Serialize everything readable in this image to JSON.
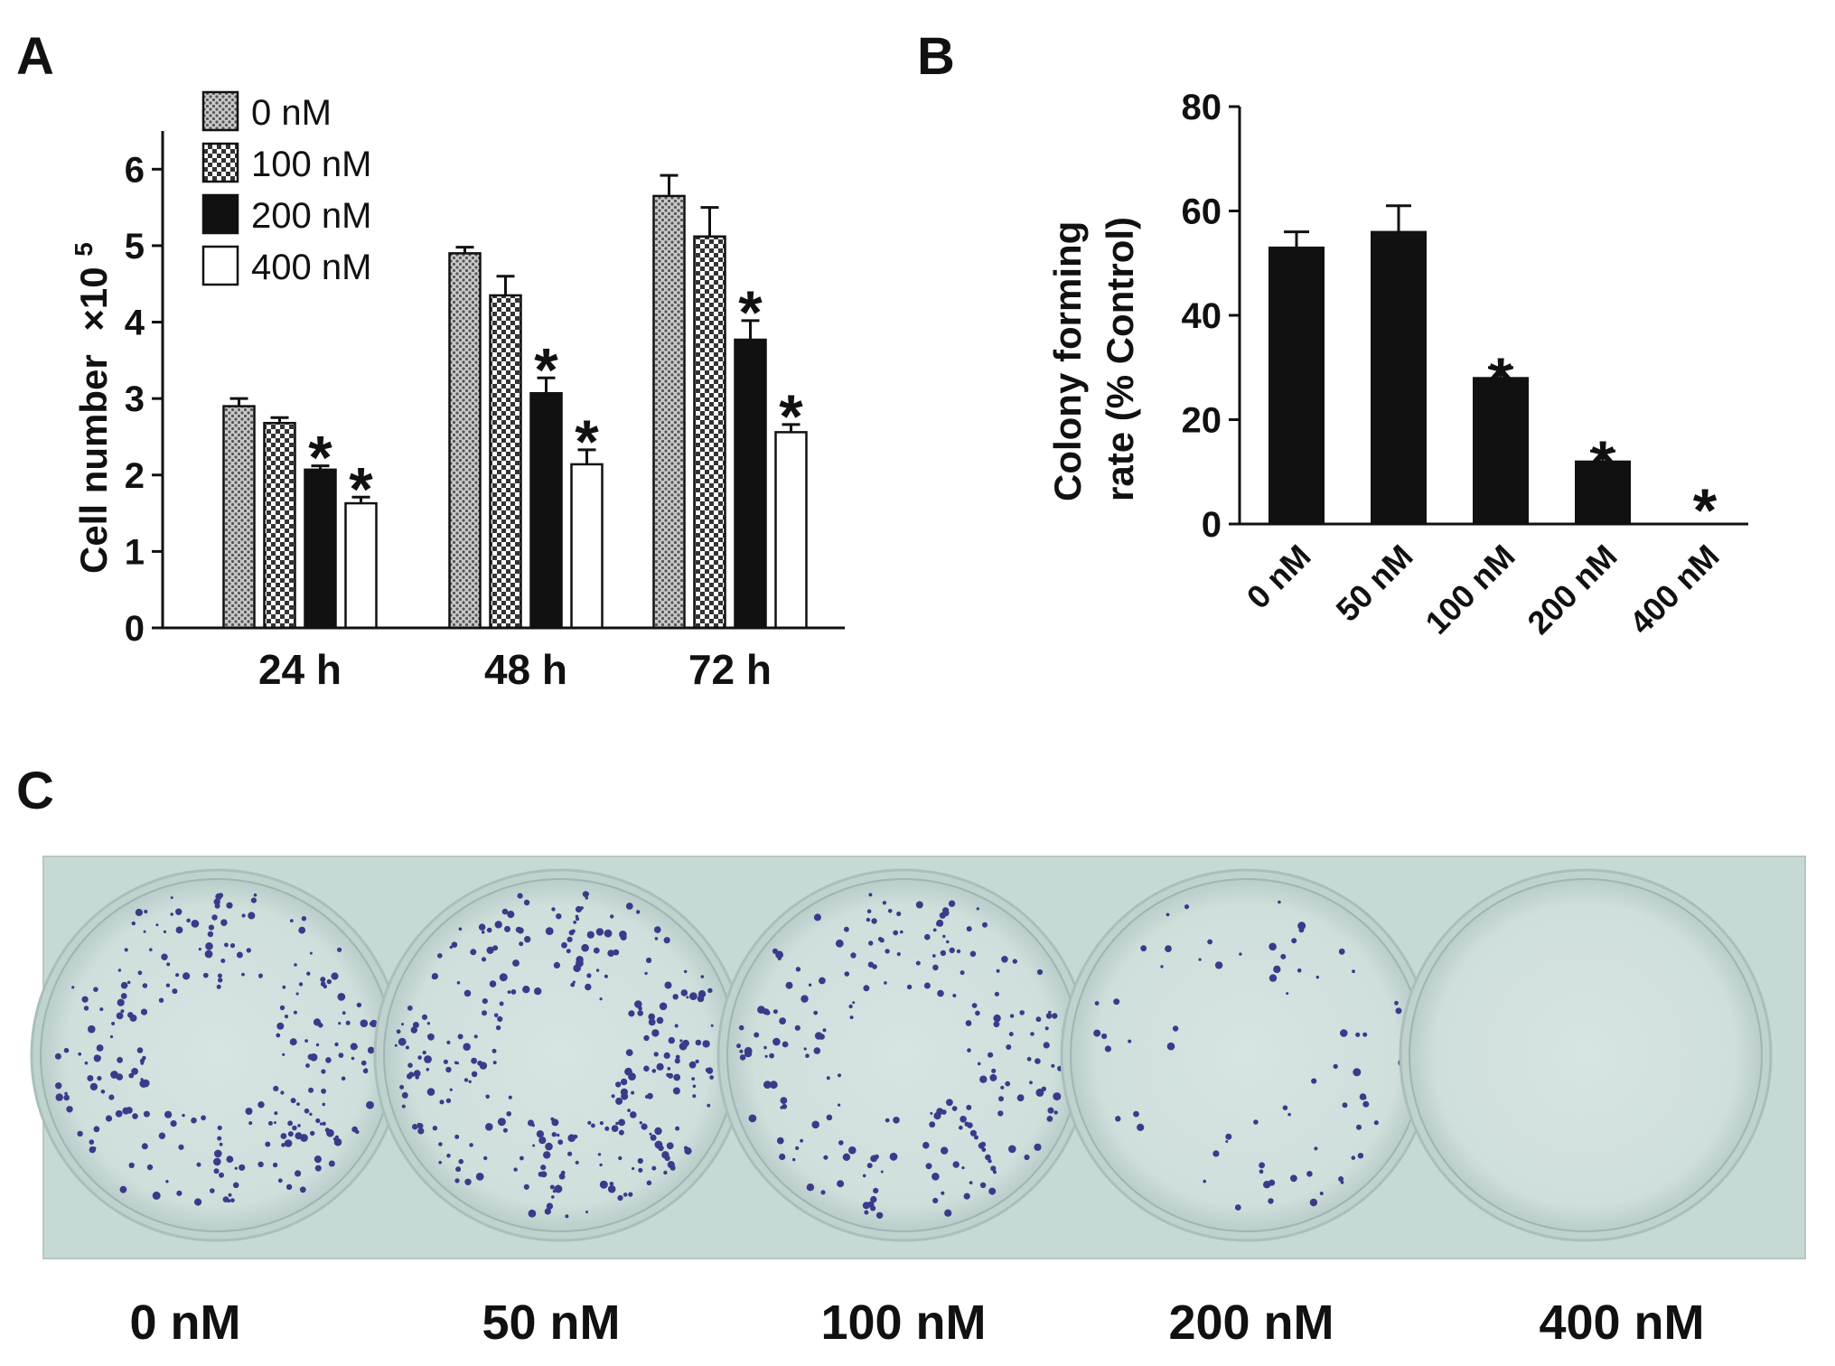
{
  "panels": {
    "a": {
      "letter": "A"
    },
    "b": {
      "letter": "B"
    },
    "c": {
      "letter": "C"
    }
  },
  "colors": {
    "ink": "#111111",
    "pattern_dots": "#555555",
    "pattern_check": "#333333",
    "plate_bg": "#c7d9d5",
    "dish_fill": "#d3e2e0",
    "colony": "#3b3a8a"
  },
  "chart_data": [
    {
      "type": "bar",
      "title": "",
      "xlabel": "",
      "ylabel": "Cell number",
      "ylabel_suffix": "×10",
      "ylabel_exponent": "5",
      "ylim": [
        0,
        6.5
      ],
      "yticks": [
        "0",
        "1",
        "2",
        "3",
        "4",
        "5",
        "6"
      ],
      "categories": [
        "24 h",
        "48 h",
        "72 h"
      ],
      "legend_position": "top-left",
      "grid": false,
      "series": [
        {
          "name": "0 nM",
          "fill": "dotted",
          "values": [
            2.9,
            4.9,
            5.65
          ],
          "errors": [
            0.1,
            0.08,
            0.27
          ],
          "significant": [
            false,
            false,
            false
          ]
        },
        {
          "name": "100 nM",
          "fill": "checkered",
          "values": [
            2.68,
            4.35,
            5.12
          ],
          "errors": [
            0.07,
            0.25,
            0.38
          ],
          "significant": [
            false,
            false,
            false
          ]
        },
        {
          "name": "200 nM",
          "fill": "black",
          "values": [
            2.07,
            3.07,
            3.77
          ],
          "errors": [
            0.05,
            0.2,
            0.25
          ],
          "significant": [
            true,
            true,
            true
          ]
        },
        {
          "name": "400 nM",
          "fill": "white",
          "values": [
            1.63,
            2.14,
            2.56
          ],
          "errors": [
            0.08,
            0.19,
            0.1
          ],
          "significant": [
            true,
            true,
            true
          ]
        }
      ],
      "significance_marker": "*"
    },
    {
      "type": "bar",
      "title": "",
      "xlabel": "",
      "ylabel_line1": "Colony forming",
      "ylabel_line2": "rate (% Control)",
      "ylim": [
        0,
        80
      ],
      "yticks": [
        "0",
        "20",
        "40",
        "60",
        "80"
      ],
      "categories": [
        "0 nM",
        "50 nM",
        "100 nM",
        "200 nM",
        "400 nM"
      ],
      "values": [
        53,
        56,
        28,
        12,
        0
      ],
      "errors": [
        3,
        5,
        2,
        2,
        0
      ],
      "significant": [
        false,
        false,
        true,
        true,
        true
      ],
      "significance_marker": "*",
      "grid": false
    }
  ],
  "plates": {
    "labels": [
      "0 nM",
      "50 nM",
      "100 nM",
      "200 nM",
      "400 nM"
    ],
    "colony_counts": [
      240,
      290,
      210,
      70,
      0
    ]
  }
}
